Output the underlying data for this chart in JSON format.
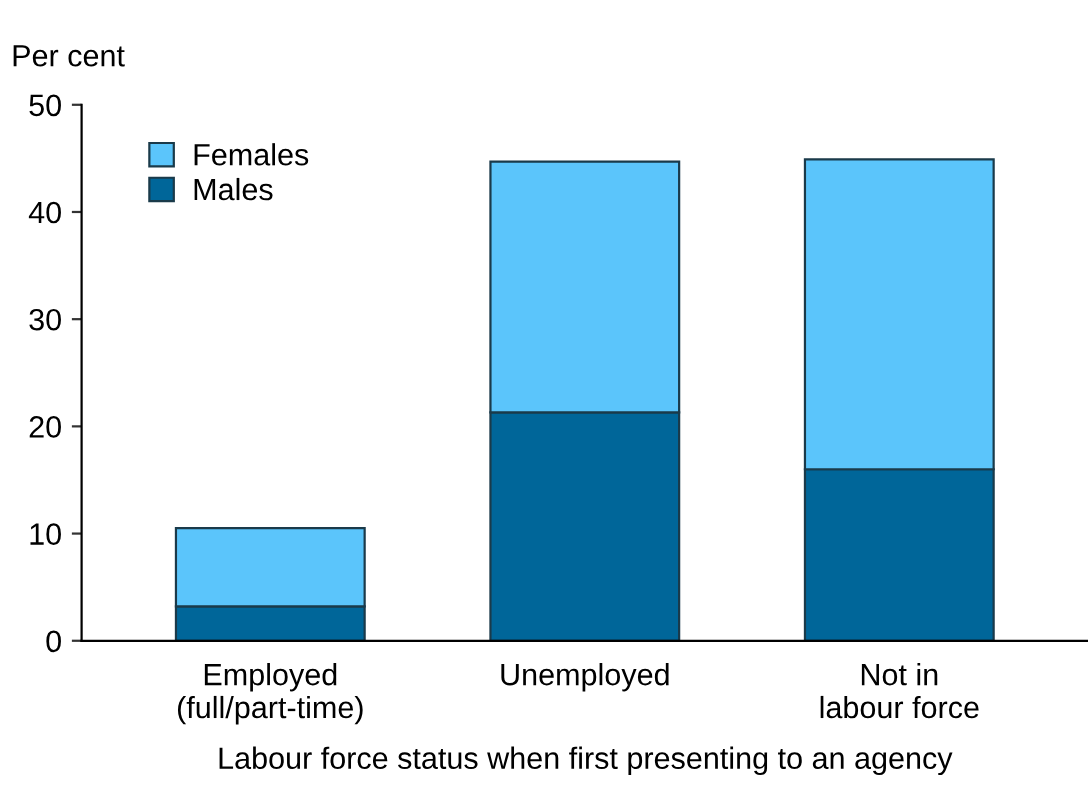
{
  "chart_data": {
    "type": "bar",
    "stacked": true,
    "ylabel": "Per cent",
    "xlabel": "Labour force status when first presenting to an agency",
    "categories": [
      "Employed\n(full/part-time)",
      "Unemployed",
      "Not in\nlabour force"
    ],
    "series": [
      {
        "name": "Males",
        "color": "#006699",
        "values": [
          3.2,
          21.3,
          16.0
        ]
      },
      {
        "name": "Females",
        "color": "#5bc5fb",
        "values": [
          7.3,
          23.4,
          28.9
        ]
      }
    ],
    "ylim": [
      0,
      50
    ],
    "yticks": [
      0,
      10,
      20,
      30,
      40,
      50
    ],
    "grid": false,
    "legend": "top left"
  }
}
